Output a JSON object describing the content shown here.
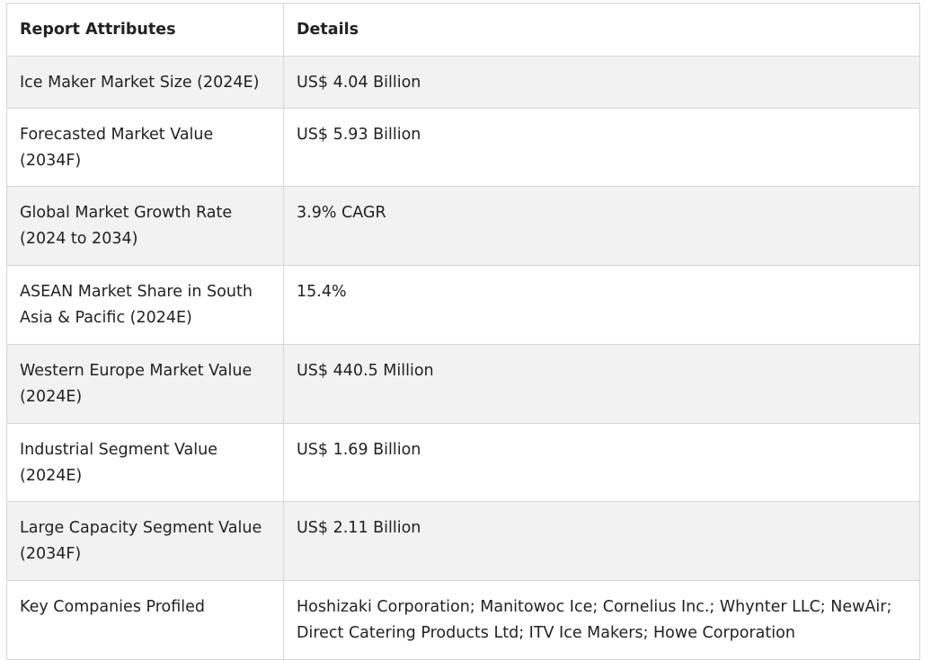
{
  "table": {
    "headers": [
      "Report Attributes",
      "Details"
    ],
    "rows": [
      {
        "attribute": "Ice Maker Market Size (2024E)",
        "details": "US$ 4.04 Billion"
      },
      {
        "attribute": "Forecasted Market Value (2034F)",
        "details": "US$ 5.93 Billion"
      },
      {
        "attribute": "Global Market Growth Rate (2024 to 2034)",
        "details": "3.9% CAGR"
      },
      {
        "attribute": "ASEAN Market Share in South Asia & Pacific (2024E)",
        "details": "15.4%"
      },
      {
        "attribute": "Western Europe Market Value (2024E)",
        "details": "US$ 440.5 Million"
      },
      {
        "attribute": "Industrial Segment Value (2024E)",
        "details": "US$ 1.69 Billion"
      },
      {
        "attribute": "Large Capacity Segment Value (2034F)",
        "details": "US$ 2.11 Billion"
      },
      {
        "attribute": "Key Companies Profiled",
        "details": "Hoshizaki Corporation; Manitowoc Ice; Cornelius Inc.; Whynter LLC; NewAir; Direct Catering Products Ltd; ITV Ice Makers; Howe Corporation"
      }
    ]
  }
}
